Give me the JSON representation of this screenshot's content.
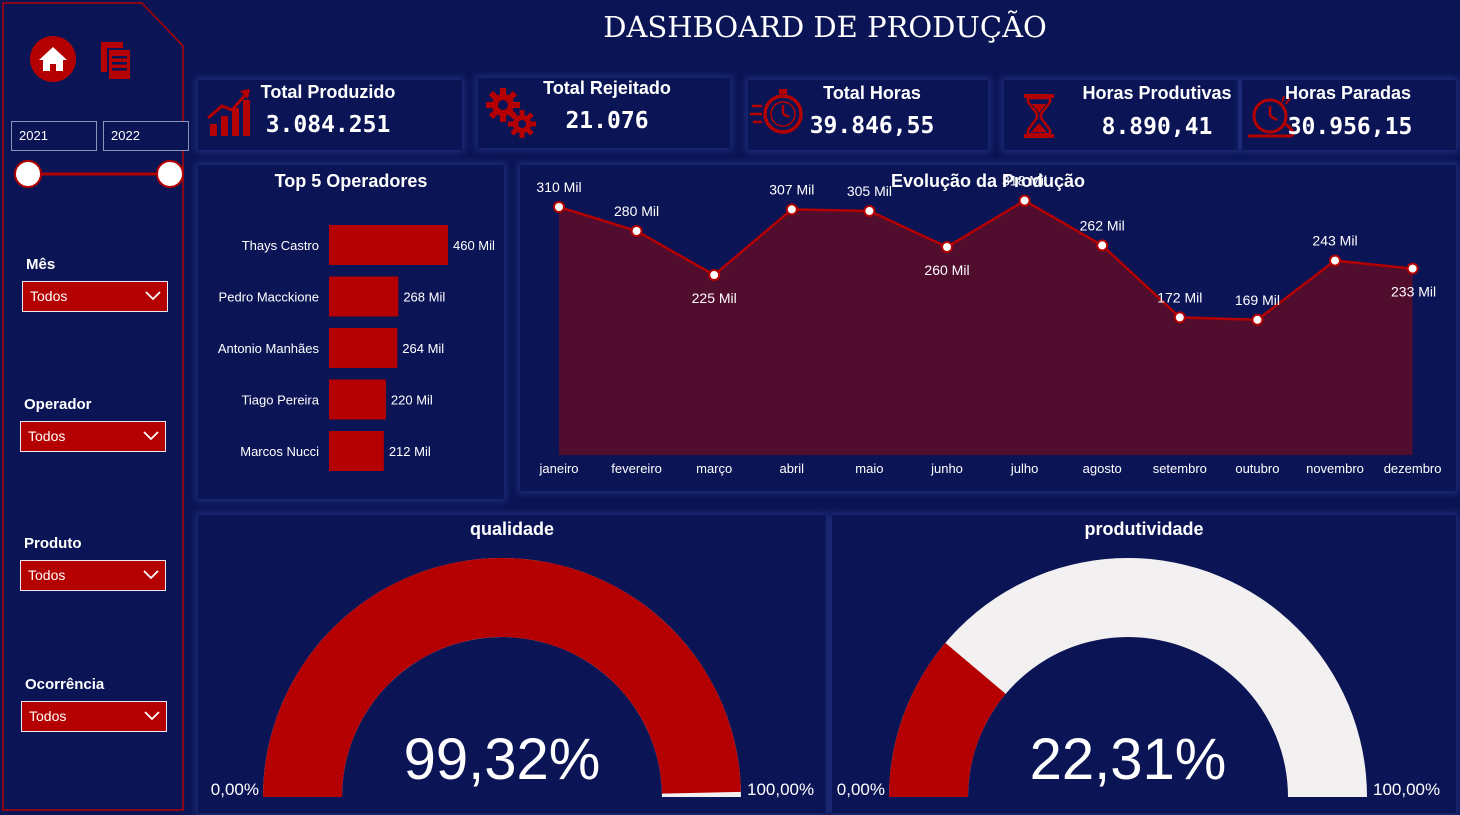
{
  "header": {
    "title": "DASHBOARD DE PRODUÇÃO"
  },
  "sidebar": {
    "nav": [
      {
        "icon": "home-icon"
      },
      {
        "icon": "report-pages-icon"
      }
    ],
    "year_range": {
      "start": "2021",
      "end": "2022"
    },
    "filters": [
      {
        "label": "Mês",
        "value": "Todos"
      },
      {
        "label": "Operador",
        "value": "Todos"
      },
      {
        "label": "Produto",
        "value": "Todos"
      },
      {
        "label": "Ocorrência",
        "value": "Todos"
      }
    ]
  },
  "kpis": [
    {
      "label": "Total Produzido",
      "value": "3.084.251",
      "icon": "growth-chart-icon"
    },
    {
      "label": "Total Rejeitado",
      "value": "21.076",
      "icon": "gears-icon"
    },
    {
      "label": "Total Horas",
      "value": "39.846,55",
      "icon": "stopwatch-icon"
    },
    {
      "label": "Horas Produtivas",
      "value": "8.890,41",
      "icon": "hourglass-icon"
    },
    {
      "label": "Horas Paradas",
      "value": "30.956,15",
      "icon": "snail-clock-icon"
    }
  ],
  "colors": {
    "background": "#0b1555",
    "accent": "#b40000",
    "area_fill": "#510d2d",
    "gauge_track": "#f2f0f0"
  },
  "chart_data": [
    {
      "type": "bar",
      "orientation": "horizontal",
      "title": "Top 5 Operadores",
      "categories": [
        "Thays Castro",
        "Pedro Macckione",
        "Antonio Manhães",
        "Tiago Pereira",
        "Marcos Nucci"
      ],
      "values": [
        460,
        268,
        264,
        220,
        212
      ],
      "data_labels": [
        "460 Mil",
        "268 Mil",
        "264 Mil",
        "220 Mil",
        "212 Mil"
      ],
      "xlim": [
        0,
        460
      ]
    },
    {
      "type": "area",
      "title": "Evolução da Produção",
      "categories": [
        "janeiro",
        "fevereiro",
        "março",
        "abril",
        "maio",
        "junho",
        "julho",
        "agosto",
        "setembro",
        "outubro",
        "novembro",
        "dezembro"
      ],
      "values": [
        310,
        280,
        225,
        307,
        305,
        260,
        318,
        262,
        172,
        169,
        243,
        233
      ],
      "data_labels": [
        "310 Mil",
        "280 Mil",
        "225 Mil",
        "307 Mil",
        "305 Mil",
        "260 Mil",
        "318 Mil",
        "262 Mil",
        "172 Mil",
        "169 Mil",
        "243 Mil",
        "233 Mil"
      ],
      "ylim": [
        0,
        330
      ],
      "grid": false
    },
    {
      "type": "gauge",
      "title": "qualidade",
      "value": 99.32,
      "value_label": "99,32%",
      "min_label": "0,00%",
      "max_label": "100,00%",
      "range": [
        0,
        100
      ]
    },
    {
      "type": "gauge",
      "title": "produtividade",
      "value": 22.31,
      "value_label": "22,31%",
      "min_label": "0,00%",
      "max_label": "100,00%",
      "range": [
        0,
        100
      ]
    }
  ]
}
